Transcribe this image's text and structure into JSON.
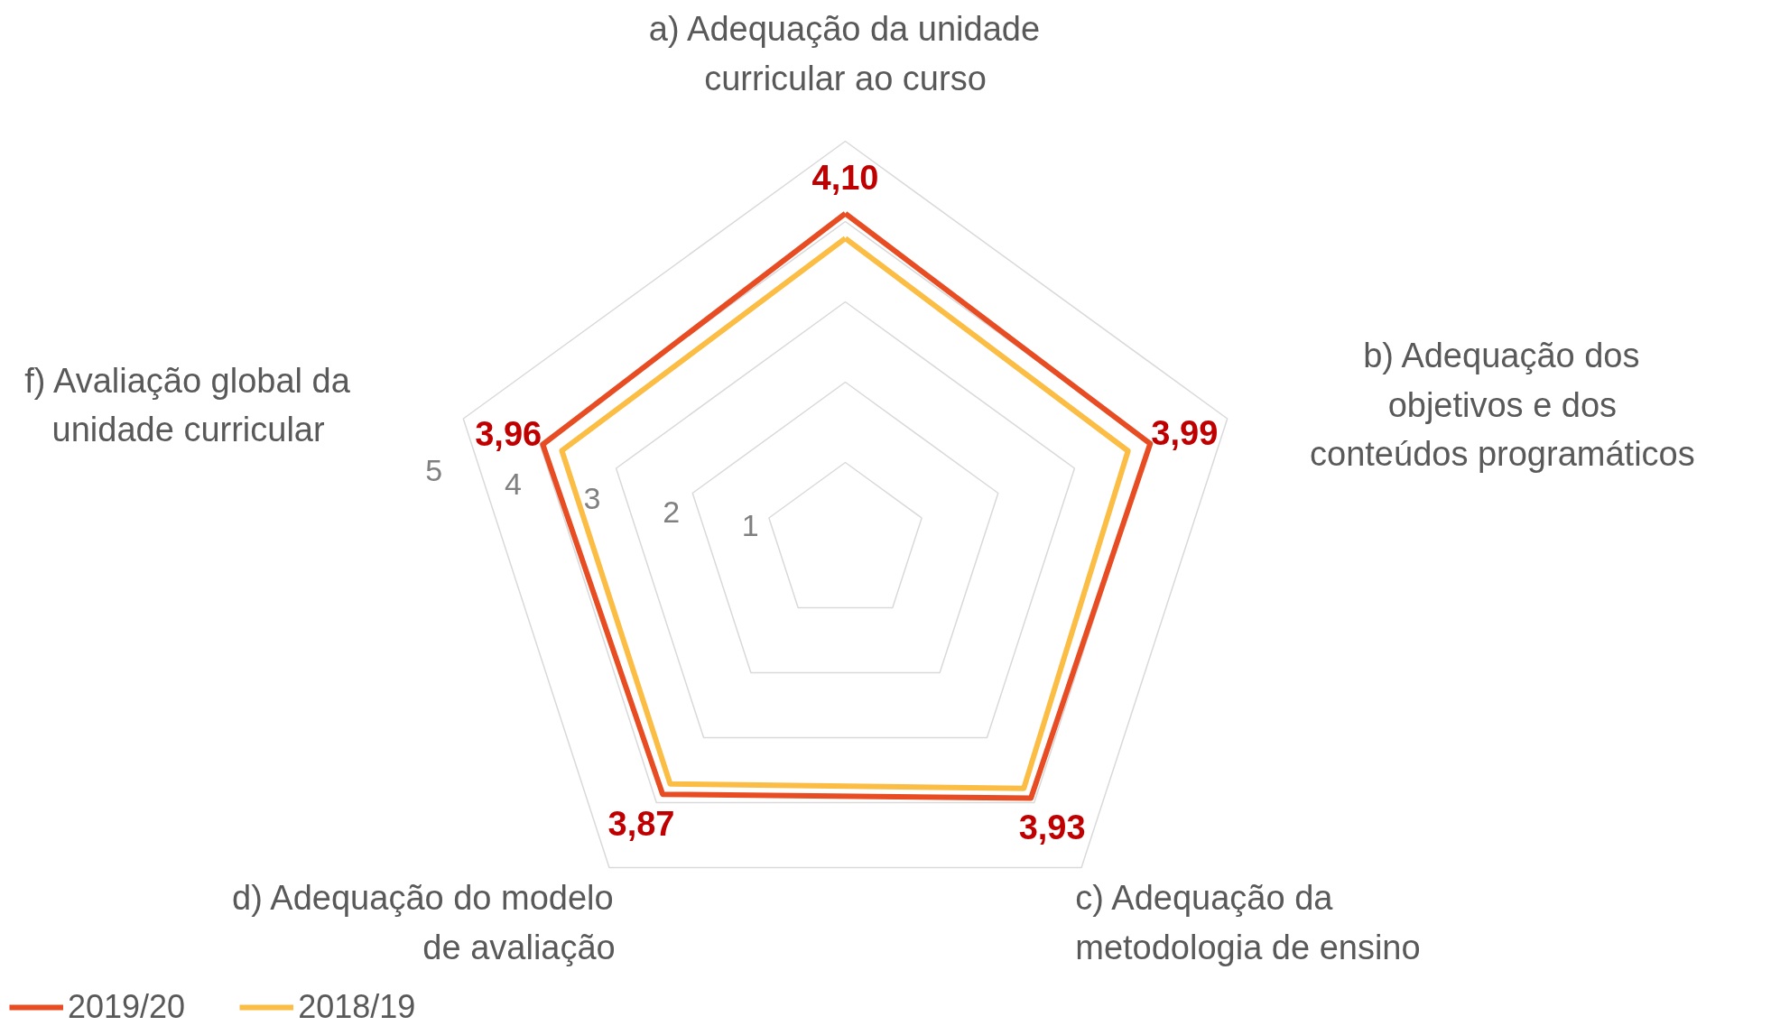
{
  "chart_data": {
    "type": "radar",
    "categories": [
      "a) Adequação da unidade\ncurricular ao curso",
      "b) Adequação dos\nobjetivos e dos\nconteúdos programáticos",
      "c) Adequação da\nmetodologia de ensino",
      "d) Adequação do modelo\nde avaliação",
      "f) Avaliação global da\nunidade curricular"
    ],
    "series": [
      {
        "name": "2019/20",
        "color": "#e84c22",
        "values": [
          4.1,
          3.99,
          3.93,
          3.87,
          3.96
        ],
        "value_labels": [
          "4,10",
          "3,99",
          "3,93",
          "3,87",
          "3,96"
        ]
      },
      {
        "name": "2018/19",
        "color": "#fbbd44",
        "values": [
          3.79,
          3.7,
          3.78,
          3.71,
          3.71
        ]
      }
    ],
    "ylim": [
      0,
      5
    ],
    "yticks": [
      1,
      2,
      3,
      4,
      5
    ],
    "grid": true,
    "legend": "bottom left",
    "marker": "none",
    "line_style": "solid"
  }
}
